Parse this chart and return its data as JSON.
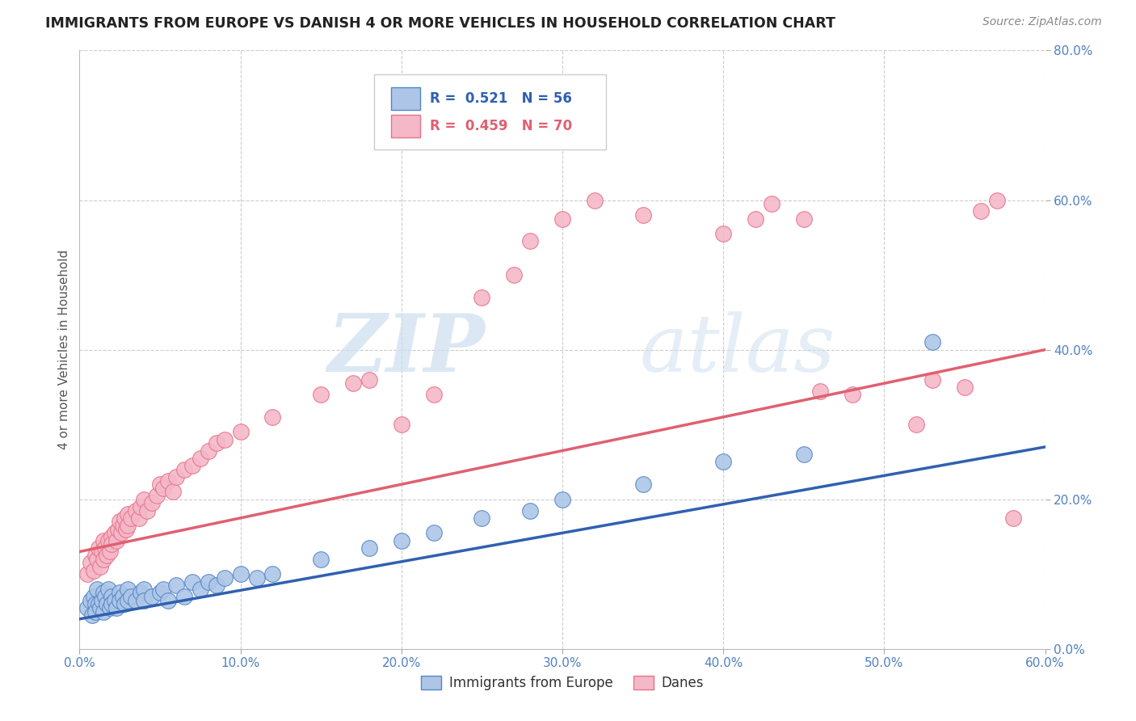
{
  "title": "IMMIGRANTS FROM EUROPE VS DANISH 4 OR MORE VEHICLES IN HOUSEHOLD CORRELATION CHART",
  "source_text": "Source: ZipAtlas.com",
  "ylabel": "4 or more Vehicles in Household",
  "xlim": [
    0.0,
    0.6
  ],
  "ylim": [
    0.0,
    0.8
  ],
  "xticks": [
    0.0,
    0.1,
    0.2,
    0.3,
    0.4,
    0.5,
    0.6
  ],
  "yticks": [
    0.0,
    0.2,
    0.4,
    0.6,
    0.8
  ],
  "xtick_labels": [
    "0.0%",
    "10.0%",
    "20.0%",
    "30.0%",
    "40.0%",
    "50.0%",
    "60.0%"
  ],
  "ytick_labels": [
    "0.0%",
    "20.0%",
    "40.0%",
    "60.0%",
    "80.0%"
  ],
  "blue_R": 0.521,
  "blue_N": 56,
  "pink_R": 0.459,
  "pink_N": 70,
  "blue_color": "#adc6e8",
  "pink_color": "#f4b8c8",
  "blue_edge_color": "#5585c5",
  "pink_edge_color": "#e8728a",
  "blue_line_color": "#3060b0",
  "pink_line_color": "#e06070",
  "legend_label_blue": "Immigrants from Europe",
  "legend_label_pink": "Danes",
  "watermark_zip": "ZIP",
  "watermark_atlas": "atlas",
  "background_color": "#ffffff",
  "grid_color": "#cccccc",
  "blue_line_x": [
    0.0,
    0.6
  ],
  "blue_line_y": [
    0.04,
    0.27
  ],
  "pink_line_x": [
    0.0,
    0.6
  ],
  "pink_line_y": [
    0.13,
    0.4
  ],
  "blue_scatter": [
    [
      0.005,
      0.055
    ],
    [
      0.007,
      0.065
    ],
    [
      0.008,
      0.045
    ],
    [
      0.009,
      0.07
    ],
    [
      0.01,
      0.06
    ],
    [
      0.01,
      0.05
    ],
    [
      0.011,
      0.08
    ],
    [
      0.012,
      0.06
    ],
    [
      0.013,
      0.055
    ],
    [
      0.014,
      0.065
    ],
    [
      0.015,
      0.075
    ],
    [
      0.015,
      0.05
    ],
    [
      0.016,
      0.07
    ],
    [
      0.017,
      0.06
    ],
    [
      0.018,
      0.08
    ],
    [
      0.019,
      0.055
    ],
    [
      0.02,
      0.07
    ],
    [
      0.02,
      0.06
    ],
    [
      0.022,
      0.065
    ],
    [
      0.023,
      0.055
    ],
    [
      0.025,
      0.075
    ],
    [
      0.025,
      0.065
    ],
    [
      0.027,
      0.07
    ],
    [
      0.028,
      0.06
    ],
    [
      0.03,
      0.08
    ],
    [
      0.03,
      0.065
    ],
    [
      0.032,
      0.07
    ],
    [
      0.035,
      0.065
    ],
    [
      0.038,
      0.075
    ],
    [
      0.04,
      0.08
    ],
    [
      0.04,
      0.065
    ],
    [
      0.045,
      0.07
    ],
    [
      0.05,
      0.075
    ],
    [
      0.052,
      0.08
    ],
    [
      0.055,
      0.065
    ],
    [
      0.06,
      0.085
    ],
    [
      0.065,
      0.07
    ],
    [
      0.07,
      0.09
    ],
    [
      0.075,
      0.08
    ],
    [
      0.08,
      0.09
    ],
    [
      0.085,
      0.085
    ],
    [
      0.09,
      0.095
    ],
    [
      0.1,
      0.1
    ],
    [
      0.11,
      0.095
    ],
    [
      0.12,
      0.1
    ],
    [
      0.15,
      0.12
    ],
    [
      0.18,
      0.135
    ],
    [
      0.2,
      0.145
    ],
    [
      0.22,
      0.155
    ],
    [
      0.25,
      0.175
    ],
    [
      0.28,
      0.185
    ],
    [
      0.3,
      0.2
    ],
    [
      0.35,
      0.22
    ],
    [
      0.4,
      0.25
    ],
    [
      0.45,
      0.26
    ],
    [
      0.53,
      0.41
    ]
  ],
  "pink_scatter": [
    [
      0.005,
      0.1
    ],
    [
      0.007,
      0.115
    ],
    [
      0.009,
      0.105
    ],
    [
      0.01,
      0.125
    ],
    [
      0.011,
      0.12
    ],
    [
      0.012,
      0.135
    ],
    [
      0.013,
      0.11
    ],
    [
      0.014,
      0.13
    ],
    [
      0.015,
      0.145
    ],
    [
      0.015,
      0.12
    ],
    [
      0.016,
      0.135
    ],
    [
      0.017,
      0.125
    ],
    [
      0.018,
      0.145
    ],
    [
      0.019,
      0.13
    ],
    [
      0.02,
      0.15
    ],
    [
      0.02,
      0.14
    ],
    [
      0.022,
      0.155
    ],
    [
      0.023,
      0.145
    ],
    [
      0.024,
      0.16
    ],
    [
      0.025,
      0.17
    ],
    [
      0.026,
      0.155
    ],
    [
      0.027,
      0.165
    ],
    [
      0.028,
      0.175
    ],
    [
      0.029,
      0.16
    ],
    [
      0.03,
      0.18
    ],
    [
      0.03,
      0.165
    ],
    [
      0.032,
      0.175
    ],
    [
      0.035,
      0.185
    ],
    [
      0.037,
      0.175
    ],
    [
      0.038,
      0.19
    ],
    [
      0.04,
      0.2
    ],
    [
      0.042,
      0.185
    ],
    [
      0.045,
      0.195
    ],
    [
      0.048,
      0.205
    ],
    [
      0.05,
      0.22
    ],
    [
      0.052,
      0.215
    ],
    [
      0.055,
      0.225
    ],
    [
      0.058,
      0.21
    ],
    [
      0.06,
      0.23
    ],
    [
      0.065,
      0.24
    ],
    [
      0.07,
      0.245
    ],
    [
      0.075,
      0.255
    ],
    [
      0.08,
      0.265
    ],
    [
      0.085,
      0.275
    ],
    [
      0.09,
      0.28
    ],
    [
      0.1,
      0.29
    ],
    [
      0.12,
      0.31
    ],
    [
      0.15,
      0.34
    ],
    [
      0.17,
      0.355
    ],
    [
      0.18,
      0.36
    ],
    [
      0.2,
      0.3
    ],
    [
      0.22,
      0.34
    ],
    [
      0.25,
      0.47
    ],
    [
      0.27,
      0.5
    ],
    [
      0.28,
      0.545
    ],
    [
      0.3,
      0.575
    ],
    [
      0.32,
      0.6
    ],
    [
      0.35,
      0.58
    ],
    [
      0.4,
      0.555
    ],
    [
      0.42,
      0.575
    ],
    [
      0.43,
      0.595
    ],
    [
      0.45,
      0.575
    ],
    [
      0.46,
      0.345
    ],
    [
      0.48,
      0.34
    ],
    [
      0.52,
      0.3
    ],
    [
      0.53,
      0.36
    ],
    [
      0.55,
      0.35
    ],
    [
      0.56,
      0.585
    ],
    [
      0.57,
      0.6
    ],
    [
      0.58,
      0.175
    ]
  ]
}
